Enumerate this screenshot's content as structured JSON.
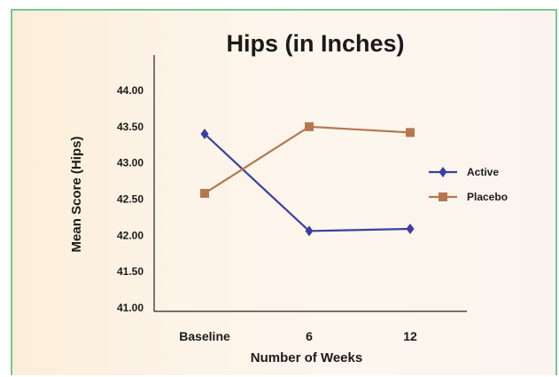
{
  "chart_data": {
    "type": "line",
    "title": "Hips (in Inches)",
    "xlabel": "Number of Weeks",
    "ylabel": "Mean Score (Hips)",
    "categories": [
      "Baseline",
      "6",
      "12"
    ],
    "yticks": [
      "41.00",
      "41.50",
      "42.00",
      "42.50",
      "43.00",
      "43.50",
      "44.00"
    ],
    "ylim": [
      41.0,
      44.0
    ],
    "grid": false,
    "legend_position": "right",
    "series": [
      {
        "name": "Active",
        "values": [
          43.4,
          42.06,
          42.09
        ],
        "color": "#3b3fa0",
        "marker": "diamond"
      },
      {
        "name": "Placebo",
        "values": [
          42.58,
          43.5,
          43.42
        ],
        "color": "#b5774f",
        "marker": "square"
      }
    ]
  }
}
